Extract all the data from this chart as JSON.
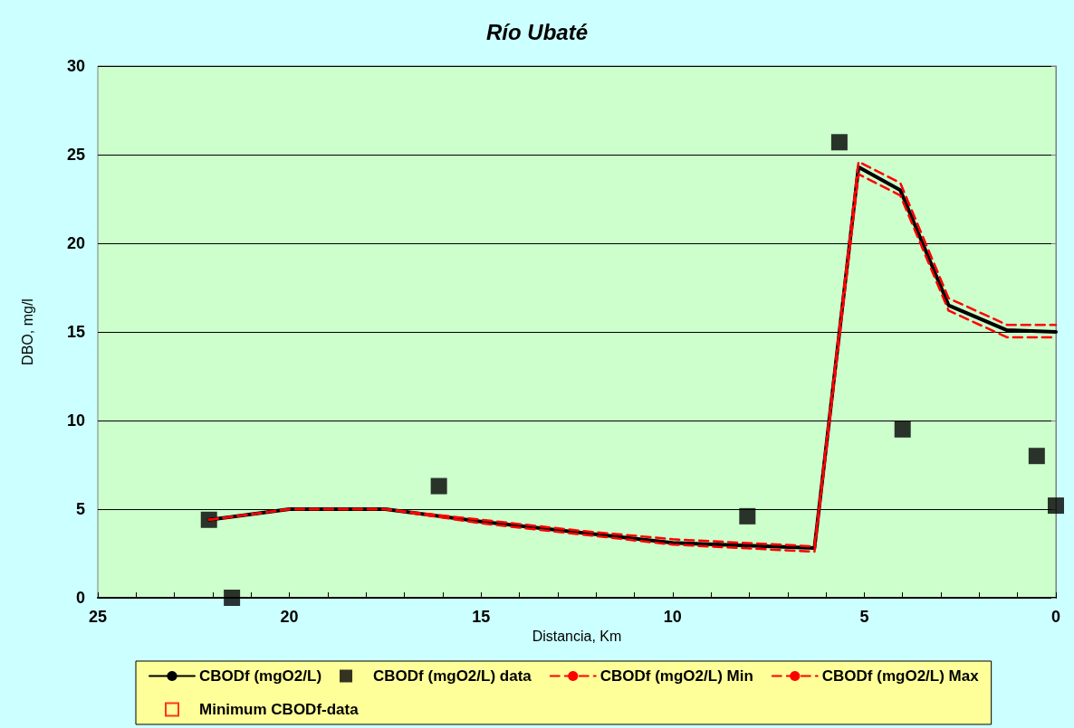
{
  "chart_data": {
    "type": "line",
    "title": "Río Ubaté",
    "xlabel": "Distancia, Km",
    "ylabel": "DBO, mg/l",
    "xlim": [
      25,
      0
    ],
    "xticks": [
      25,
      20,
      15,
      10,
      5,
      0
    ],
    "ylim": [
      0,
      30
    ],
    "yticks": [
      0,
      5,
      10,
      15,
      20,
      25,
      30
    ],
    "grid": "y",
    "legend": "bottom",
    "series": [
      {
        "name": "CBODf (mgO2/L)",
        "color": "#000000",
        "line_style": "solid",
        "marker": "none",
        "x": [
          22.1,
          20,
          17.5,
          15,
          12.5,
          10,
          6.3,
          5.15,
          4.06,
          2.8,
          1.28,
          0
        ],
        "values": [
          4.4,
          5.0,
          5.0,
          4.3,
          3.7,
          3.1,
          2.8,
          24.3,
          23.0,
          16.5,
          15.1,
          15.0
        ]
      },
      {
        "name": "CBODf (mgO2/L) data",
        "type": "scatter",
        "color": "#000000",
        "marker": "square",
        "x": [
          22.1,
          21.5,
          16.1,
          8.05,
          5.65,
          4.0,
          0.5,
          0
        ],
        "values": [
          4.4,
          0,
          6.3,
          4.6,
          25.7,
          9.5,
          8.0,
          5.2
        ]
      },
      {
        "name": "CBODf (mgO2/L) Min",
        "color": "#ff0000",
        "line_style": "dashed",
        "marker": "none",
        "x": [
          22.1,
          20,
          17.5,
          15,
          12.5,
          10,
          6.3,
          5.15,
          4.06,
          2.8,
          1.28,
          0
        ],
        "values": [
          4.4,
          5.0,
          5.0,
          4.2,
          3.6,
          3.0,
          2.6,
          23.9,
          22.7,
          16.2,
          14.7,
          14.7
        ]
      },
      {
        "name": "CBODf (mgO2/L) Max",
        "color": "#ff0000",
        "line_style": "dashed",
        "marker": "none",
        "x": [
          22.1,
          20,
          17.5,
          15,
          12.5,
          10,
          6.3,
          5.15,
          4.06,
          2.8,
          1.28,
          0
        ],
        "values": [
          4.4,
          5.0,
          5.0,
          4.4,
          3.8,
          3.3,
          2.9,
          24.6,
          23.4,
          16.9,
          15.4,
          15.4
        ]
      },
      {
        "name": "Minimum CBODf-data",
        "type": "scatter",
        "color": "#ff0000",
        "marker": "square"
      }
    ]
  }
}
